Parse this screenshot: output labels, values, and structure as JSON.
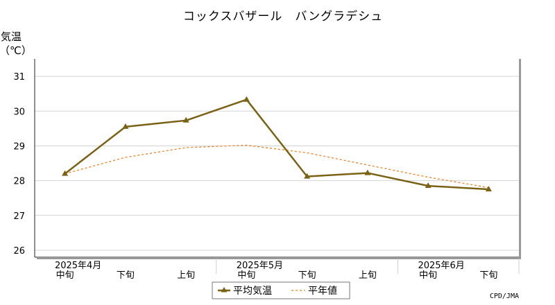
{
  "chart_data": {
    "type": "line",
    "title": "コックスバザール　バングラデシュ",
    "ylabel": "気温",
    "yunit": "（℃）",
    "ylim": [
      25.8,
      31.5
    ],
    "yticks": [
      26,
      27,
      28,
      29,
      30,
      31
    ],
    "grid": true,
    "legend_position": "bottom-center",
    "categories": [
      "中旬",
      "下旬",
      "上旬",
      "中旬",
      "下旬",
      "上旬",
      "中旬",
      "下旬"
    ],
    "month_labels": [
      {
        "label": "2025年4月",
        "category_index": 0
      },
      {
        "label": "2025年5月",
        "category_index": 3
      },
      {
        "label": "2025年6月",
        "category_index": 6
      }
    ],
    "series": [
      {
        "name": "平均気温",
        "color": "#7a6214",
        "style": "solid-triangle",
        "values": [
          28.2,
          29.55,
          29.73,
          30.33,
          28.12,
          28.22,
          27.85,
          27.75
        ]
      },
      {
        "name": "平年値",
        "color": "#f08020",
        "style": "dotted",
        "values": [
          28.2,
          28.67,
          28.95,
          29.02,
          28.8,
          28.45,
          28.1,
          27.8
        ]
      }
    ],
    "credit": "CPD/JMA"
  }
}
